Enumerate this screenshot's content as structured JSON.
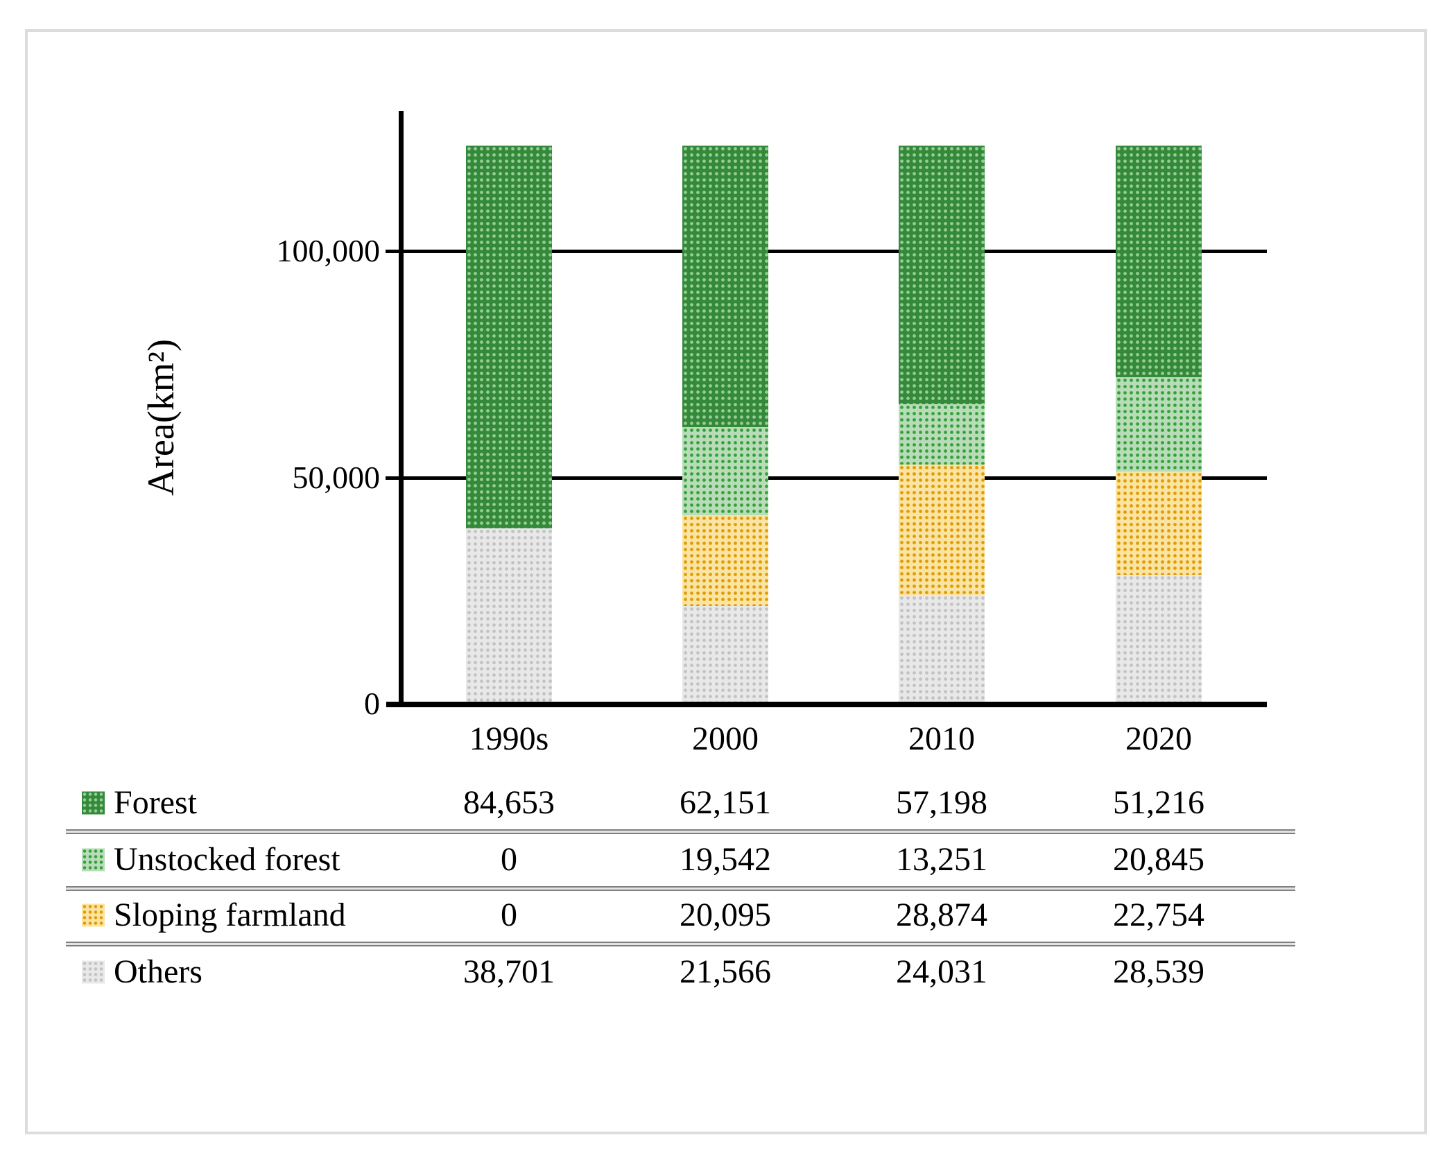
{
  "chart_data": {
    "type": "bar",
    "stacked": true,
    "title": "",
    "xlabel": "",
    "ylabel": "Area(km²)",
    "categories": [
      "1990s",
      "2000",
      "2010",
      "2020"
    ],
    "series": [
      {
        "name": "Forest",
        "values": [
          84653,
          62151,
          57198,
          51216
        ],
        "display": [
          "84,653",
          "62,151",
          "57,198",
          "51,216"
        ],
        "color_base": "#35893a",
        "color_dot": "#96cf96"
      },
      {
        "name": "Unstocked forest",
        "values": [
          0,
          19542,
          13251,
          20845
        ],
        "display": [
          "0",
          "19,542",
          "13,251",
          "20,845"
        ],
        "color_base": "#b7dcb7",
        "color_dot": "#33a03a"
      },
      {
        "name": "Sloping farmland",
        "values": [
          0,
          20095,
          28874,
          22754
        ],
        "display": [
          "0",
          "20,095",
          "28,874",
          "22,754"
        ],
        "color_base": "#fbe3a2",
        "color_dot": "#dd9c04"
      },
      {
        "name": "Others",
        "values": [
          38701,
          21566,
          24031,
          28539
        ],
        "display": [
          "38,701",
          "21,566",
          "24,031",
          "28,539"
        ],
        "color_base": "#e8e8e8",
        "color_dot": "#c2c2c2"
      }
    ],
    "y_ticks": [
      {
        "value": 0,
        "label": "0"
      },
      {
        "value": 50000,
        "label": "50,000"
      },
      {
        "value": 100000,
        "label": "100,000"
      }
    ],
    "ylim": [
      0,
      123354
    ],
    "grid": true,
    "legend_position": "table-rows-below-left"
  }
}
